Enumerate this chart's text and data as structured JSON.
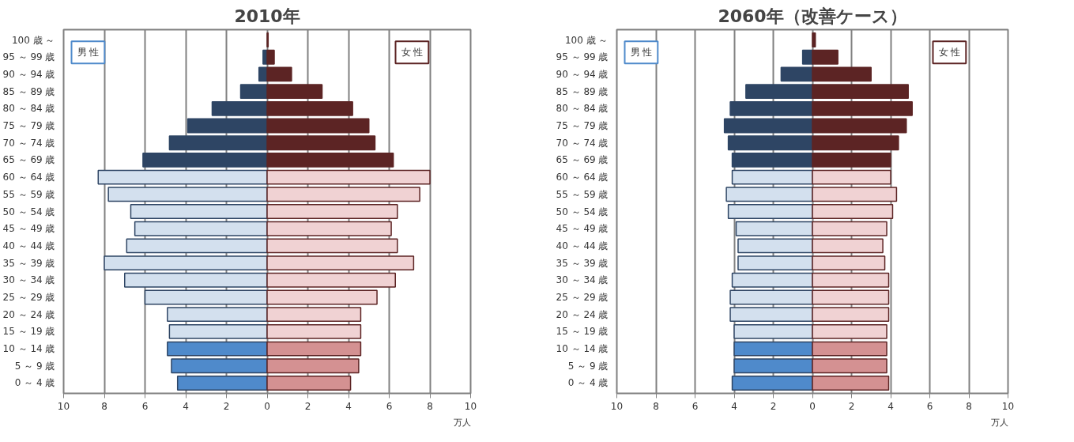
{
  "chart_data": [
    {
      "type": "bar",
      "orientation": "horizontal",
      "title": "2010年",
      "xlabel": "万人",
      "categories": [
        "100 歳 ～",
        "95 ～ 99 歳",
        "90 ～ 94 歳",
        "85 ～ 89 歳",
        "80 ～ 84 歳",
        "75 ～ 79 歳",
        "70 ～ 74 歳",
        "65 ～ 69 歳",
        "60 ～ 64 歳",
        "55 ～ 59 歳",
        "50 ～ 54 歳",
        "45 ～ 49 歳",
        "40 ～ 44 歳",
        "35 ～ 39 歳",
        "30 ～ 34 歳",
        "25 ～ 29 歳",
        "20 ～ 24 歳",
        "15 ～ 19 歳",
        "10 ～ 14 歳",
        "5 ～ 9 歳",
        "0 ～ 4 歳"
      ],
      "series": [
        {
          "name": "男 性",
          "values": [
            null,
            -0.2,
            -0.4,
            -1.3,
            -2.7,
            -3.9,
            -4.8,
            -6.1,
            -8.3,
            -7.8,
            -6.7,
            -6.5,
            -6.9,
            -8.0,
            -7.0,
            -6.0,
            -4.9,
            -4.8,
            -4.9,
            -4.7,
            -4.4
          ],
          "colors": [
            "#2e4564",
            "#2e4564",
            "#2e4564",
            "#2e4564",
            "#2e4564",
            "#2e4564",
            "#2e4564",
            "#2e4564",
            "#d3e0ee",
            "#d3e0ee",
            "#d3e0ee",
            "#d3e0ee",
            "#d3e0ee",
            "#d3e0ee",
            "#d3e0ee",
            "#d3e0ee",
            "#d3e0ee",
            "#d3e0ee",
            "#4f8acb",
            "#4f8acb",
            "#4f8acb"
          ]
        },
        {
          "name": "女 性",
          "values": [
            0.05,
            0.35,
            1.2,
            2.7,
            4.2,
            5.0,
            5.3,
            6.2,
            8.0,
            7.5,
            6.4,
            6.1,
            6.4,
            7.2,
            6.3,
            5.4,
            4.6,
            4.6,
            4.6,
            4.5,
            4.1
          ],
          "colors": [
            "#5c2424",
            "#5c2424",
            "#5c2424",
            "#5c2424",
            "#5c2424",
            "#5c2424",
            "#5c2424",
            "#5c2424",
            "#f0d2d3",
            "#f0d2d3",
            "#f0d2d3",
            "#f0d2d3",
            "#f0d2d3",
            "#f0d2d3",
            "#f0d2d3",
            "#f0d2d3",
            "#f0d2d3",
            "#f0d2d3",
            "#d49192",
            "#d49192",
            "#d49192"
          ]
        }
      ],
      "xlim": [
        -10,
        10
      ],
      "xticks": [
        {
          "value": -10,
          "label": "10"
        },
        {
          "value": -8,
          "label": "8"
        },
        {
          "value": -6,
          "label": "6"
        },
        {
          "value": -4,
          "label": "4"
        },
        {
          "value": -2,
          "label": "2"
        },
        0,
        2,
        4,
        6,
        8,
        10
      ],
      "grid": "x",
      "legend": false,
      "stacked": true
    },
    {
      "type": "bar",
      "orientation": "horizontal",
      "title": "2060年（改善ケース）",
      "xlabel": "万人",
      "categories": [
        "100 歳 ～",
        "95 ～ 99 歳",
        "90 ～ 94 歳",
        "85 ～ 89 歳",
        "80 ～ 84 歳",
        "75 ～ 79 歳",
        "70 ～ 74 歳",
        "65 ～ 69 歳",
        "60 ～ 64 歳",
        "55 ～ 59 歳",
        "50 ～ 54 歳",
        "45 ～ 49 歳",
        "40 ～ 44 歳",
        "35 ～ 39 歳",
        "30 ～ 34 歳",
        "25 ～ 29 歳",
        "20 ～ 24 歳",
        "15 ～ 19 歳",
        "10 ～ 14 歳",
        "5 ～ 9 歳",
        "0 ～ 4 歳"
      ],
      "series": [
        {
          "name": "男 性",
          "values": [
            null,
            -0.5,
            -1.6,
            -3.4,
            -4.2,
            -4.5,
            -4.3,
            -4.1,
            -4.1,
            -4.4,
            -4.3,
            -3.9,
            -3.8,
            -3.8,
            -4.1,
            -4.2,
            -4.2,
            -4.0,
            -4.0,
            -4.0,
            -4.1
          ],
          "colors": [
            "#2e4564",
            "#2e4564",
            "#2e4564",
            "#2e4564",
            "#2e4564",
            "#2e4564",
            "#2e4564",
            "#2e4564",
            "#d3e0ee",
            "#d3e0ee",
            "#d3e0ee",
            "#d3e0ee",
            "#d3e0ee",
            "#d3e0ee",
            "#d3e0ee",
            "#d3e0ee",
            "#d3e0ee",
            "#d3e0ee",
            "#4f8acb",
            "#4f8acb",
            "#4f8acb"
          ]
        },
        {
          "name": "女 性",
          "values": [
            0.15,
            1.3,
            3.0,
            4.9,
            5.1,
            4.8,
            4.4,
            4.0,
            4.0,
            4.3,
            4.1,
            3.8,
            3.6,
            3.7,
            3.9,
            3.9,
            3.9,
            3.8,
            3.8,
            3.8,
            3.9
          ],
          "colors": [
            "#5c2424",
            "#5c2424",
            "#5c2424",
            "#5c2424",
            "#5c2424",
            "#5c2424",
            "#5c2424",
            "#5c2424",
            "#f0d2d3",
            "#f0d2d3",
            "#f0d2d3",
            "#f0d2d3",
            "#f0d2d3",
            "#f0d2d3",
            "#f0d2d3",
            "#f0d2d3",
            "#f0d2d3",
            "#f0d2d3",
            "#d49192",
            "#d49192",
            "#d49192"
          ]
        }
      ],
      "xlim": [
        -10,
        10
      ],
      "xticks": [
        {
          "value": -10,
          "label": "10"
        },
        {
          "value": -8,
          "label": "8"
        },
        {
          "value": -6,
          "label": "6"
        },
        {
          "value": -4,
          "label": "4"
        },
        {
          "value": -2,
          "label": "2"
        },
        0,
        2,
        4,
        6,
        8,
        10
      ],
      "grid": "x",
      "legend": false,
      "stacked": true
    }
  ]
}
